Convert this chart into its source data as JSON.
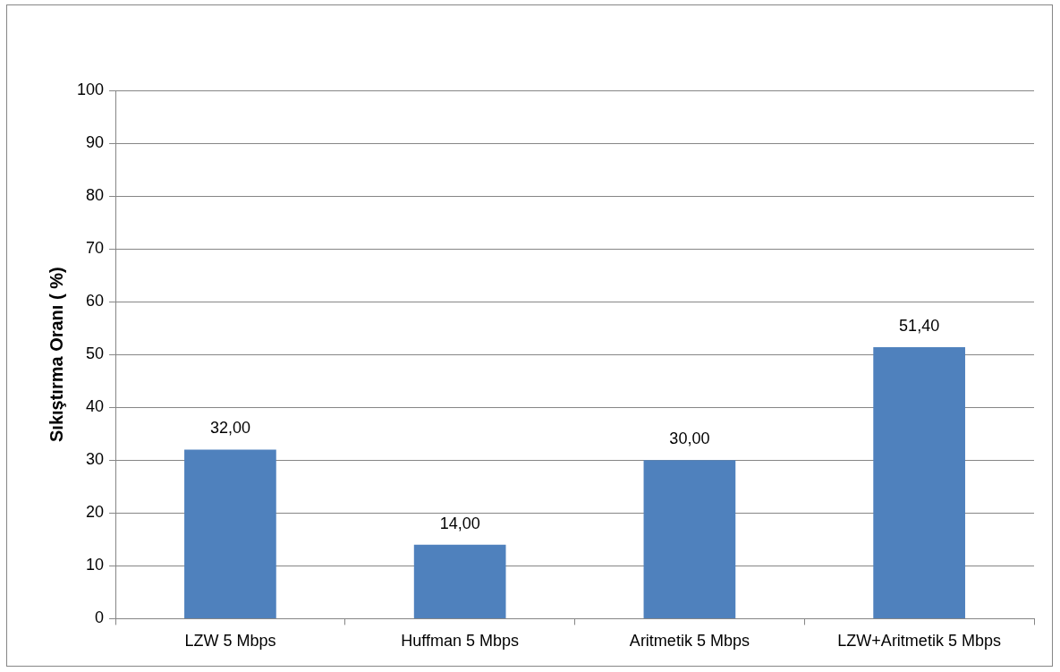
{
  "chart_data": {
    "type": "bar",
    "ylabel": "Sıkıştırma Oranı ( %)",
    "categories": [
      "LZW 5 Mbps",
      "Huffman 5 Mbps",
      "Aritmetik 5 Mbps",
      "LZW+Aritmetik 5 Mbps"
    ],
    "values": [
      32,
      14,
      30,
      51.4
    ],
    "value_labels": [
      "32,00",
      "14,00",
      "30,00",
      "51,40"
    ],
    "color": "#4f81bd",
    "ylim": [
      0,
      100
    ],
    "yticks": [
      0,
      10,
      20,
      30,
      40,
      50,
      60,
      70,
      80,
      90,
      100
    ],
    "grid": "y",
    "legend": false
  }
}
